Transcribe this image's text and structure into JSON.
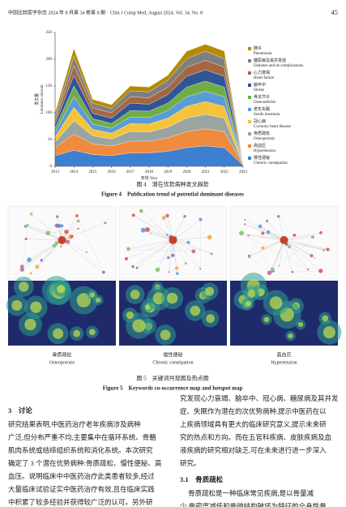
{
  "header": {
    "journal": "中国比较医学杂志 2024 年 8 月第 34 卷第 8 期　Chin J Comp Med, August 2024, Vol. 34, No. 8",
    "page": "45"
  },
  "chart_data": {
    "type": "stacked_area",
    "ylabel": "发文量",
    "ylabel_en": "Literature amount",
    "xlabel": "年份 Year",
    "x": [
      2013,
      2014,
      2015,
      2016,
      2017,
      2018,
      2019,
      2020,
      2021,
      2022,
      2023
    ],
    "xlim": [
      2013,
      2023
    ],
    "xticks": [
      2013,
      2014,
      2015,
      2016,
      2017,
      2018,
      2019,
      2020,
      2021,
      2022,
      2023
    ],
    "ylim": [
      0,
      250
    ],
    "yticks": [
      0,
      50,
      100,
      150,
      200,
      250
    ],
    "series": [
      {
        "name": "慢性便秘",
        "name_en": "Chronic constipation",
        "color": "#3e7fd0",
        "values": [
          20,
          30,
          22,
          20,
          25,
          25,
          28,
          35,
          38,
          35,
          2
        ]
      },
      {
        "name": "高血压",
        "name_en": "Hypertension",
        "color": "#f08a3c",
        "values": [
          15,
          30,
          20,
          18,
          22,
          22,
          25,
          30,
          32,
          30,
          1
        ]
      },
      {
        "name": "骨质疏松",
        "name_en": "Osteoporosis",
        "color": "#9aa5a0",
        "values": [
          10,
          25,
          15,
          13,
          18,
          17,
          20,
          25,
          27,
          25,
          1
        ]
      },
      {
        "name": "冠心病",
        "name_en": "Coronary heart disease",
        "color": "#f5c33b",
        "values": [
          10,
          25,
          12,
          11,
          15,
          15,
          17,
          22,
          24,
          22,
          1
        ]
      },
      {
        "name": "老年失眠",
        "name_en": "Senile insomnia",
        "color": "#5b9bd5",
        "values": [
          8,
          20,
          10,
          9,
          12,
          12,
          14,
          18,
          19,
          18,
          1
        ]
      },
      {
        "name": "骨关节炎",
        "name_en": "Osteoarthritis",
        "color": "#70ad47",
        "values": [
          8,
          20,
          10,
          9,
          12,
          12,
          14,
          18,
          19,
          18,
          1
        ]
      },
      {
        "name": "脑卒中",
        "name_en": "Stroke",
        "color": "#2f5597",
        "values": [
          8,
          20,
          10,
          10,
          14,
          13,
          16,
          20,
          21,
          20,
          1
        ]
      },
      {
        "name": "心力衰竭",
        "name_en": "Heart failure",
        "color": "#a5673f",
        "values": [
          7,
          18,
          10,
          10,
          12,
          12,
          14,
          17,
          18,
          17,
          1
        ]
      },
      {
        "name": "糖尿病及其并发症",
        "name_en": "Diabetes and its complications",
        "color": "#7f7f7f",
        "values": [
          7,
          17,
          9,
          8,
          11,
          11,
          13,
          16,
          17,
          16,
          1
        ]
      },
      {
        "name": "肺炎",
        "name_en": "Pneumonia",
        "color": "#b58a00",
        "values": [
          7,
          15,
          7,
          7,
          9,
          9,
          9,
          14,
          13,
          14,
          0
        ]
      }
    ]
  },
  "figure4": {
    "caption": "图 4　潜在优势病种发文趋势",
    "caption_en": "Figure 4　Publication trend of potential dominant diseases"
  },
  "figure5": {
    "panels": [
      {
        "label": "骨质疏松",
        "label_en": "Osteoporosis"
      },
      {
        "label": "慢性便秘",
        "label_en": "Chronic constipation"
      },
      {
        "label": "高血压",
        "label_en": "Hypertension"
      }
    ],
    "caption": "图 5　关键词共现图及热点图",
    "caption_en": "Figure 5　Keywords co-occurrence map and hotspot map"
  },
  "body": {
    "section": "3　讨论",
    "left_lines": [
      "研究结果表明,中医药治疗老年疾病涉及病种",
      "广泛,但分布严重不均,主要集中在循环系统、骨骼",
      "肌肉系统或结缔组织系统和消化系统。本次研究",
      "确定了 3 个潜在优势病种:骨质疏松、慢性便秘、高",
      "血压。说明临床中中医药治疗此类患者较多,经过",
      "大量临床试验证实中医药治疗有效,且在临床实践",
      "中积累了较多经验并获得较广泛的认可。另外研"
    ],
    "right_lines": [
      "究发现心力衰竭、脑卒中、冠心病、糖尿病及其并发",
      "症、失眠作为潜在的次优势病种,提示中医药在以",
      "上疾病领域具有更大的临床研究意义,提示未来研",
      "究的热点和方向。而在五官科疾病、皮肤疾病及血",
      "液疾病的研究相对缺乏,可在未来进行进一步深入",
      "研究。"
    ],
    "subsection": "3.1　骨质疏松",
    "sub_lines": [
      "骨质疏松是一种临床常见疾病,是以骨量减",
      "少,骨密度减低和骨微结构破坏为特征的全身性骨"
    ]
  }
}
